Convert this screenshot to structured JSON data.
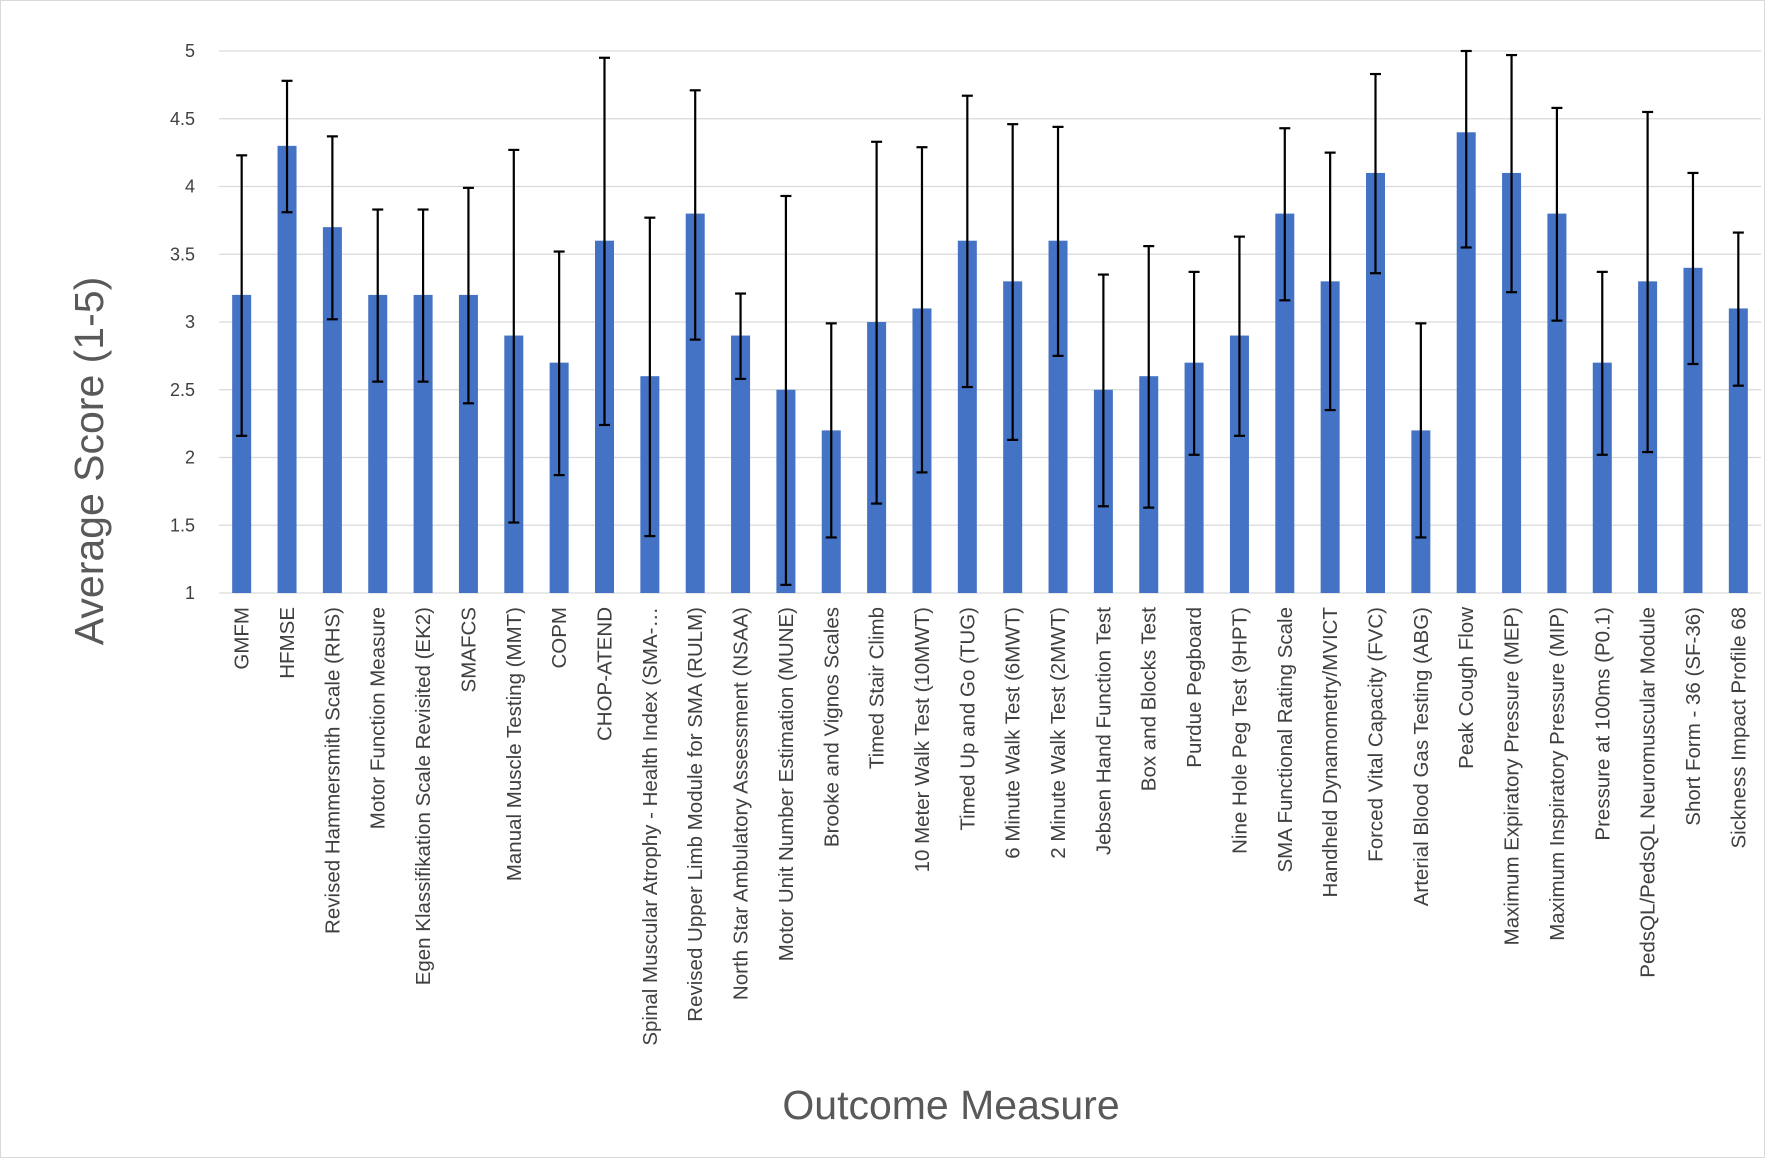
{
  "chart_data": {
    "type": "bar",
    "title": "",
    "xlabel": "Outcome Measure",
    "ylabel": "Average Score (1-5)",
    "ylim": [
      1,
      5
    ],
    "yticks": [
      1,
      1.5,
      2,
      2.5,
      3,
      3.5,
      4,
      4.5,
      5
    ],
    "ytick_labels": [
      "1",
      "1.5",
      "2",
      "2.5",
      "3",
      "3.5",
      "4",
      "4.5",
      "5"
    ],
    "grid": true,
    "legend": "none",
    "bar_color": "#4472c4",
    "error_bar_color": "#000000",
    "categories": [
      "GMFM",
      "HFMSE",
      "Revised Hammersmith Scale (RHS)",
      "Motor Function Measure",
      "Egen Klassifikation Scale Revisited (EK2)",
      "SMAFCS",
      "Manual Muscle Testing (MMT)",
      "COPM",
      "CHOP-ATEND",
      "Spinal Muscular Atrophy - Health Index (SMA-…",
      "Revised Upper Limb Module for SMA (RULM)",
      "North Star Ambulatory Assessment (NSAA)",
      "Motor Unit Number Estimation (MUNE)",
      "Brooke and Vignos Scales",
      "Timed Stair Climb",
      "10 Meter Walk Test (10MWT)",
      "Timed Up and Go (TUG)",
      "6 Minute Walk Test (6MWT)",
      "2 Minute Walk Test (2MWT)",
      "Jebsen Hand Function Test",
      "Box and Blocks Test",
      "Purdue Pegboard",
      "Nine Hole Peg Test (9HPT)",
      "SMA Functional Rating Scale",
      "Handheld Dynamometry/MVICT",
      "Forced Vital Capacity (FVC)",
      "Arterial Blood Gas Testing (ABG)",
      "Peak Cough Flow",
      "Maximum Expiratory Pressure (MEP)",
      "Maximum Inspiratory Pressure (MIP)",
      "Pressure at 100ms (P0.1)",
      "PedsQL/PedsQL Neuromuscular Module",
      "Short Form - 36 (SF-36)",
      "Sickness Impact Profile 68"
    ],
    "values": [
      3.2,
      4.3,
      3.7,
      3.2,
      3.2,
      3.2,
      2.9,
      2.7,
      3.6,
      2.6,
      3.8,
      2.9,
      2.5,
      2.2,
      3.0,
      3.1,
      3.6,
      3.3,
      3.6,
      2.5,
      2.6,
      2.7,
      2.9,
      3.8,
      3.3,
      4.1,
      2.2,
      4.4,
      4.1,
      3.8,
      2.7,
      3.3,
      3.4,
      3.1
    ],
    "error_low": [
      2.16,
      3.81,
      3.02,
      2.56,
      2.56,
      2.4,
      1.52,
      1.87,
      2.24,
      1.42,
      2.87,
      2.58,
      1.06,
      1.41,
      1.66,
      1.89,
      2.52,
      2.13,
      2.75,
      1.64,
      1.63,
      2.02,
      2.16,
      3.16,
      2.35,
      3.36,
      1.41,
      3.55,
      3.22,
      3.01,
      2.02,
      2.04,
      2.69,
      2.53
    ],
    "error_high": [
      4.23,
      4.78,
      4.37,
      3.83,
      3.83,
      3.99,
      4.27,
      3.52,
      4.95,
      3.77,
      4.71,
      3.21,
      3.93,
      2.99,
      4.33,
      4.29,
      4.67,
      4.46,
      4.44,
      3.35,
      3.56,
      3.37,
      3.63,
      4.43,
      4.25,
      4.83,
      2.99,
      5.0,
      4.97,
      4.58,
      3.37,
      4.55,
      4.1,
      3.66
    ]
  }
}
